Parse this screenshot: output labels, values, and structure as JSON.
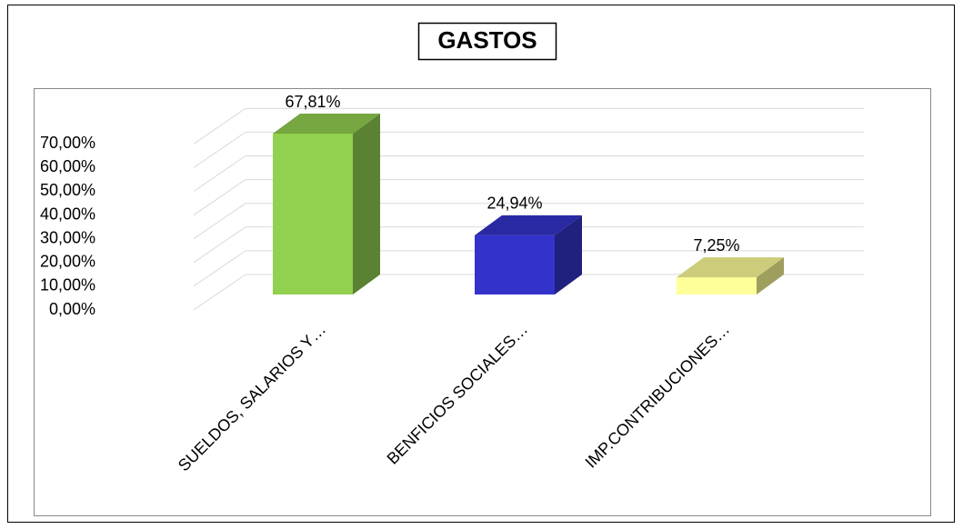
{
  "chart_data": {
    "type": "bar3d",
    "title": "GASTOS",
    "categories": [
      "SUELDOS, SALARIOS Y…",
      "BENFICIOS SOCIALES…",
      "IMP.CONTRIBUCIONES…"
    ],
    "values": [
      67.81,
      24.94,
      7.25
    ],
    "value_labels": [
      "67,81%",
      "24,94%",
      "7,25%"
    ],
    "colors": [
      "#92d050",
      "#3333cc",
      "#ffff99"
    ],
    "ylim": [
      0,
      70
    ],
    "yticks": [
      {
        "value": 0,
        "label": "0,00%"
      },
      {
        "value": 10,
        "label": "10,00%"
      },
      {
        "value": 20,
        "label": "20,00%"
      },
      {
        "value": 30,
        "label": "30,00%"
      },
      {
        "value": 40,
        "label": "40,00%"
      },
      {
        "value": 50,
        "label": "50,00%"
      },
      {
        "value": 60,
        "label": "60,00%"
      },
      {
        "value": 70,
        "label": "70,00%"
      }
    ],
    "grid": true
  }
}
